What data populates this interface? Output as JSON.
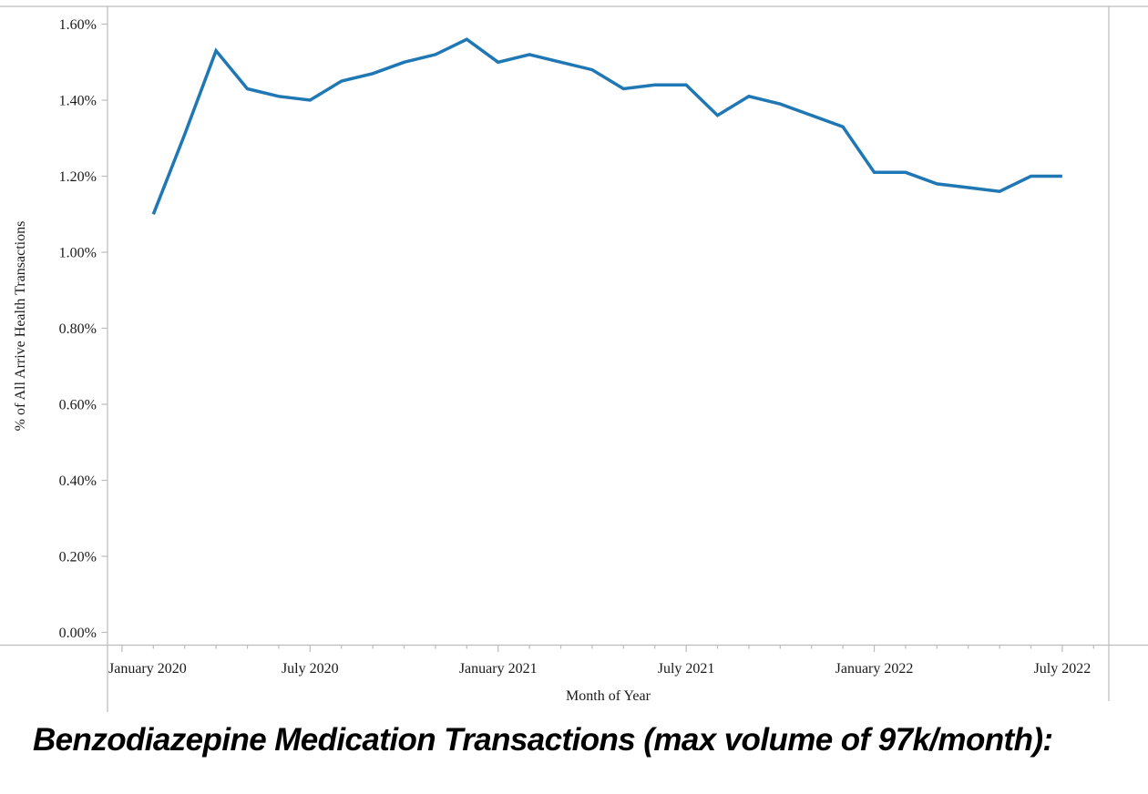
{
  "caption": "Benzodiazepine Medication Transactions (max volume of 97k/month):",
  "colors": {
    "line": "#1F77B4",
    "axis": "#bcbcbc",
    "text": "#1a1a1a",
    "background": "#ffffff"
  },
  "chart_data": {
    "type": "line",
    "title": "",
    "xlabel": "Month of Year",
    "ylabel": "% of All Arrive Health Transactions",
    "unit": "%",
    "ylim": [
      0.0,
      1.6
    ],
    "grid": false,
    "legend": "none",
    "line_color": "#1F77B4",
    "line_width": 3.5,
    "x": [
      "Feb 2020",
      "Mar 2020",
      "Apr 2020",
      "May 2020",
      "Jun 2020",
      "Jul 2020",
      "Aug 2020",
      "Sep 2020",
      "Oct 2020",
      "Nov 2020",
      "Dec 2020",
      "Jan 2021",
      "Feb 2021",
      "Mar 2021",
      "Apr 2021",
      "May 2021",
      "Jun 2021",
      "Jul 2021",
      "Aug 2021",
      "Sep 2021",
      "Oct 2021",
      "Nov 2021",
      "Dec 2021",
      "Jan 2022",
      "Feb 2022",
      "Mar 2022",
      "Apr 2022",
      "May 2022",
      "Jun 2022",
      "Jul 2022"
    ],
    "values": [
      1.1,
      1.31,
      1.53,
      1.43,
      1.41,
      1.4,
      1.45,
      1.47,
      1.5,
      1.52,
      1.56,
      1.5,
      1.52,
      1.5,
      1.48,
      1.43,
      1.44,
      1.44,
      1.36,
      1.41,
      1.39,
      1.36,
      1.33,
      1.21,
      1.21,
      1.18,
      1.17,
      1.16,
      1.2,
      1.2
    ],
    "yticks": {
      "values": [
        0.0,
        0.2,
        0.4,
        0.6,
        0.8,
        1.0,
        1.2,
        1.4,
        1.6
      ],
      "labels": [
        "0.00%",
        "0.20%",
        "0.40%",
        "0.60%",
        "0.80%",
        "1.00%",
        "1.20%",
        "1.40%",
        "1.60%"
      ]
    },
    "xticks_labeled": [
      {
        "label": "January 2020",
        "month_index": 0
      },
      {
        "label": "July 2020",
        "month_index": 6
      },
      {
        "label": "January 2021",
        "month_index": 12
      },
      {
        "label": "July 2021",
        "month_index": 18
      },
      {
        "label": "January 2022",
        "month_index": 24
      },
      {
        "label": "July 2022",
        "month_index": 30
      }
    ],
    "x_axis_months_total": 32,
    "data_start_month_index": 1
  }
}
